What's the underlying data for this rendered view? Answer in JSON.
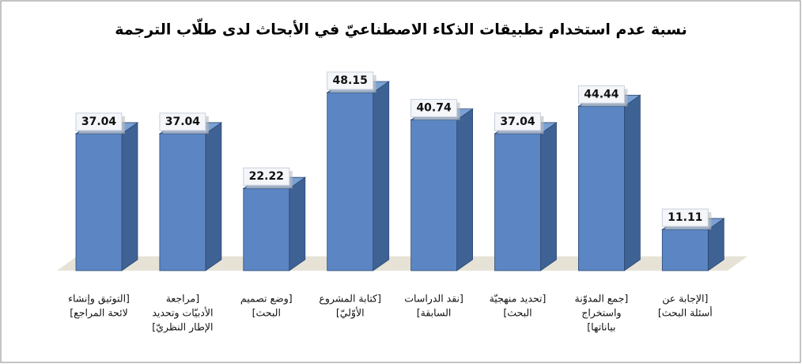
{
  "chart_data": {
    "type": "bar3d",
    "title": "نسبة عدم استخدام تطبيقات الذكاء الاصطناعيّ في الأبحاث لدى طلّاب الترجمة",
    "categories": [
      [
        "[التوثيق وإنشاء",
        "لائحة المراجع]"
      ],
      [
        "[مراجعة",
        "الأدبيّات وتحديد",
        "الإطار النظريّ]"
      ],
      [
        "[وضع تصميم",
        "البحث]"
      ],
      [
        "[كتابة المشروع",
        "الأوّليّ]"
      ],
      [
        "[نقد الدراسات",
        "السابقة]"
      ],
      [
        "[تحديد منهجيّة",
        "البحث]"
      ],
      [
        "[جمع المدوّنة",
        "واستخراج",
        "بياناتها]"
      ],
      [
        "[الإجابة عن",
        "أسئلة البحث]"
      ]
    ],
    "values": [
      37.04,
      37.04,
      22.22,
      48.15,
      40.74,
      37.04,
      44.44,
      11.11
    ],
    "color": "#5b86c3"
  }
}
